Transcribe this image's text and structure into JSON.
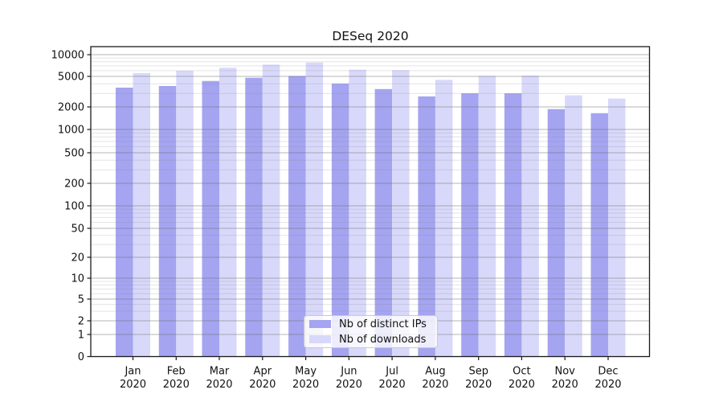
{
  "chart_data": {
    "type": "bar",
    "title": "DESeq 2020",
    "xlabel": "",
    "ylabel": "",
    "yscale": "symlog",
    "ylim": [
      0,
      11000
    ],
    "grid": "horizontal major and minor gridlines",
    "legend_position": "lower center inside plot",
    "categories": [
      "Jan",
      "Feb",
      "Mar",
      "Apr",
      "May",
      "Jun",
      "Jul",
      "Aug",
      "Sep",
      "Oct",
      "Nov",
      "Dec"
    ],
    "category_year_line": "2020",
    "yticks": [
      0,
      1,
      2,
      5,
      10,
      20,
      50,
      100,
      200,
      500,
      1000,
      2000,
      5000,
      10000
    ],
    "series": [
      {
        "name": "Nb of distinct IPs",
        "color": "#a4a4f1",
        "values": [
          3570,
          3740,
          4360,
          4800,
          5060,
          4030,
          3420,
          2740,
          3010,
          3010,
          1870,
          1650
        ]
      },
      {
        "name": "Nb of downloads",
        "color": "#d8d8fa",
        "values": [
          5540,
          5990,
          6580,
          7290,
          7800,
          6180,
          6100,
          4510,
          5090,
          5130,
          2830,
          2570
        ]
      }
    ],
    "colors": {
      "major_grid": "#b3b3b3",
      "minor_grid": "#e5e5e5",
      "axis": "#1a1a1a",
      "background": "#ffffff"
    }
  }
}
